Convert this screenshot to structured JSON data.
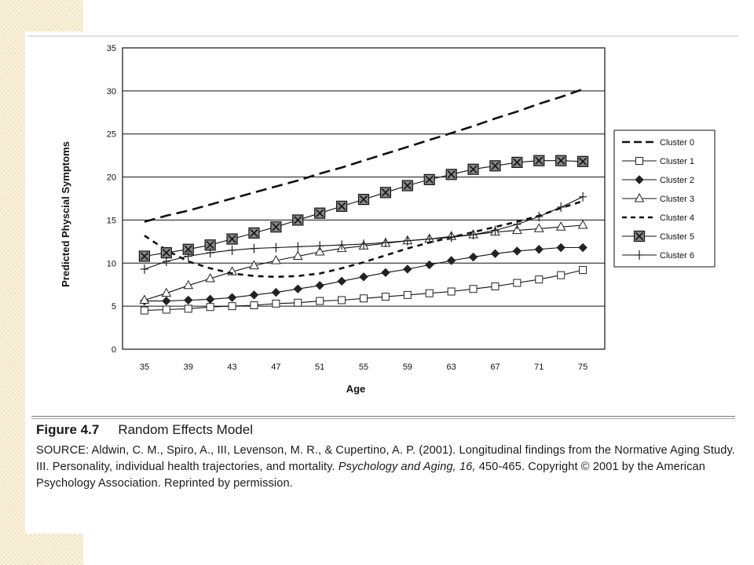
{
  "figure": {
    "number": "Figure 4.7",
    "title": "Random Effects Model",
    "source_prefix": "SOURCE: Aldwin, C. M., Spiro, A., III, Levenson, M. R., & Cupertino, A. P. (2001). Longitudinal findings from the Normative Aging Study. III. Personality, individual health trajectories, and mortality. ",
    "source_journal": "Psychology and Aging, 16,",
    "source_suffix": " 450-465. Copyright © 2001 by the American Psychology Association. Reprinted by permission."
  },
  "chart_data": {
    "type": "line",
    "xlabel": "Age",
    "ylabel": "Predicted Physcial Symptoms",
    "xlim": [
      33,
      77
    ],
    "ylim": [
      0,
      35
    ],
    "x_ticks": [
      35,
      39,
      43,
      47,
      51,
      55,
      59,
      63,
      67,
      71,
      75
    ],
    "y_ticks": [
      0,
      5,
      10,
      15,
      20,
      25,
      30,
      35
    ],
    "grid": "horizontal",
    "legend_position": "right",
    "x": [
      35,
      37,
      39,
      41,
      43,
      45,
      47,
      49,
      51,
      53,
      55,
      57,
      59,
      61,
      63,
      65,
      67,
      69,
      71,
      73,
      75
    ],
    "series": [
      {
        "name": "Cluster 0",
        "style": "long-dash",
        "marker": "none",
        "values": [
          14.8,
          15.5,
          16.1,
          16.8,
          17.5,
          18.2,
          18.9,
          19.6,
          20.4,
          21.1,
          21.9,
          22.7,
          23.5,
          24.3,
          25.1,
          25.9,
          26.8,
          27.6,
          28.5,
          29.3,
          30.2
        ]
      },
      {
        "name": "Cluster 1",
        "style": "solid",
        "marker": "open-square",
        "values": [
          4.5,
          4.6,
          4.7,
          4.9,
          5.0,
          5.1,
          5.3,
          5.4,
          5.6,
          5.7,
          5.9,
          6.1,
          6.3,
          6.5,
          6.7,
          7.0,
          7.3,
          7.7,
          8.1,
          8.6,
          9.2
        ]
      },
      {
        "name": "Cluster 2",
        "style": "solid",
        "marker": "diamond",
        "values": [
          5.6,
          5.6,
          5.7,
          5.8,
          6.0,
          6.3,
          6.6,
          7.0,
          7.4,
          7.9,
          8.4,
          8.9,
          9.3,
          9.8,
          10.3,
          10.7,
          11.1,
          11.4,
          11.6,
          11.8,
          11.8
        ]
      },
      {
        "name": "Cluster 3",
        "style": "solid",
        "marker": "triangle",
        "values": [
          5.7,
          6.5,
          7.4,
          8.2,
          9.0,
          9.7,
          10.3,
          10.8,
          11.3,
          11.7,
          12.0,
          12.3,
          12.6,
          12.8,
          13.1,
          13.3,
          13.6,
          13.8,
          14.0,
          14.2,
          14.4
        ]
      },
      {
        "name": "Cluster 4",
        "style": "short-dash",
        "marker": "none",
        "values": [
          13.2,
          11.5,
          10.2,
          9.4,
          8.8,
          8.5,
          8.4,
          8.5,
          8.8,
          9.4,
          10.1,
          10.9,
          11.7,
          12.4,
          13.0,
          13.6,
          14.2,
          14.8,
          15.5,
          16.4,
          17.2
        ]
      },
      {
        "name": "Cluster 5",
        "style": "solid",
        "marker": "boxed-x",
        "values": [
          10.8,
          11.2,
          11.6,
          12.1,
          12.8,
          13.5,
          14.2,
          15.0,
          15.8,
          16.6,
          17.4,
          18.2,
          19.0,
          19.7,
          20.3,
          20.9,
          21.3,
          21.7,
          21.9,
          21.9,
          21.8
        ]
      },
      {
        "name": "Cluster 6",
        "style": "solid",
        "marker": "plus",
        "values": [
          9.3,
          10.2,
          10.8,
          11.2,
          11.5,
          11.7,
          11.8,
          11.9,
          12.0,
          12.1,
          12.2,
          12.4,
          12.6,
          12.8,
          13.0,
          13.3,
          13.8,
          14.5,
          15.4,
          16.5,
          17.7
        ]
      }
    ]
  }
}
